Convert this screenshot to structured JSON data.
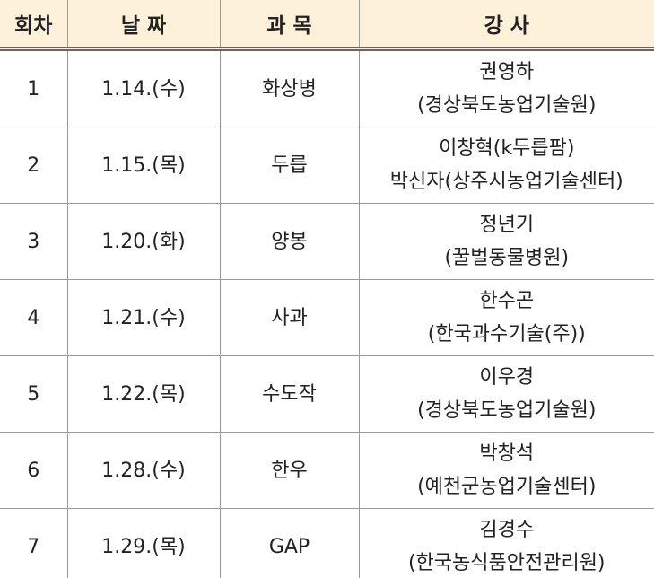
{
  "table": {
    "header": [
      "회차",
      "날 짜",
      "과 목",
      "강 사"
    ],
    "rows": [
      [
        "1",
        "1.14.(수)",
        "화상병",
        "권영하",
        "(경상북도농업기술원)"
      ],
      [
        "2",
        "1.15.(목)",
        "두릅",
        "이창혁(k두릅팜)",
        "박신자(상주시농업기술센터)"
      ],
      [
        "3",
        "1.20.(화)",
        "양봉",
        "정년기",
        "(꿀벌동물병원)"
      ],
      [
        "4",
        "1.21.(수)",
        "사과",
        "한수곤",
        "(한국과수기술(주))"
      ],
      [
        "5",
        "1.22.(목)",
        "수도작",
        "이우경",
        "(경상북도농업기술원)"
      ],
      [
        "6",
        "1.28.(수)",
        "한우",
        "박창석",
        "(예천군농업기술센터)"
      ],
      [
        "7",
        "1.29.(목)",
        "GAP",
        "김경수",
        "(한국농식품안전관리원)"
      ]
    ]
  }
}
